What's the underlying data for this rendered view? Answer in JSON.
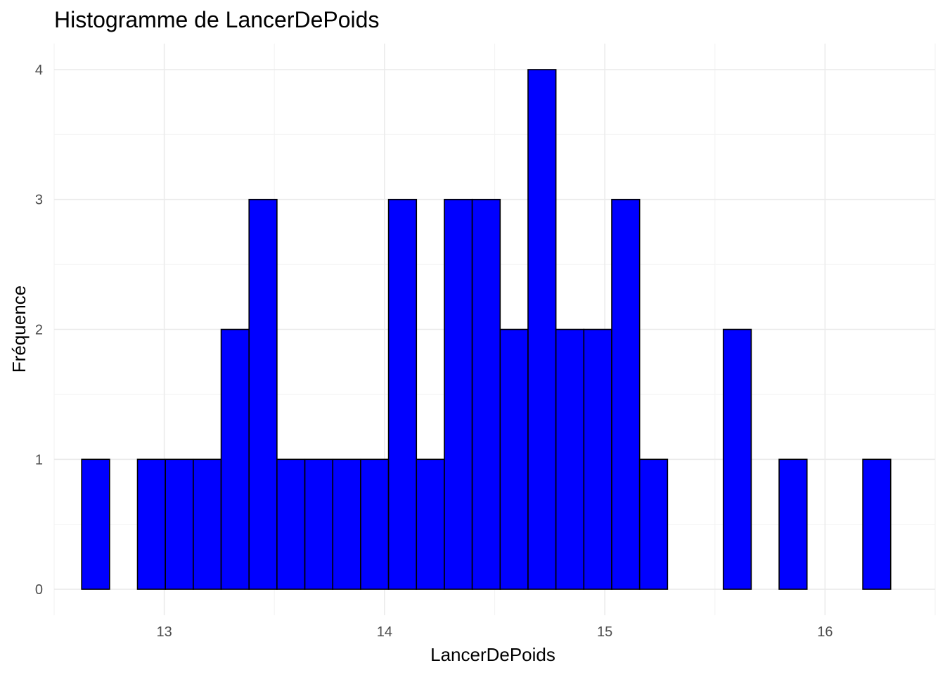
{
  "chart_data": {
    "type": "bar",
    "title": "Histogramme de LancerDePoids",
    "xlabel": "LancerDePoids",
    "ylabel": "Fréquence",
    "bin_start": 12.625,
    "bin_width": 0.12666,
    "counts": [
      1,
      0,
      1,
      1,
      1,
      2,
      3,
      1,
      1,
      1,
      1,
      3,
      1,
      3,
      3,
      2,
      4,
      2,
      2,
      3,
      1,
      0,
      0,
      2,
      0,
      1,
      0,
      0,
      1
    ],
    "xlim": [
      12.5,
      16.5
    ],
    "ylim": [
      -0.2,
      4.2
    ],
    "xticks": [
      13,
      14,
      15,
      16
    ],
    "yticks": [
      0,
      1,
      2,
      3,
      4
    ],
    "grid": true,
    "colors": {
      "fill": "#0000ff",
      "outline": "#000000",
      "grid_major": "#ebebeb",
      "grid_minor": "#f4f4f4"
    }
  }
}
